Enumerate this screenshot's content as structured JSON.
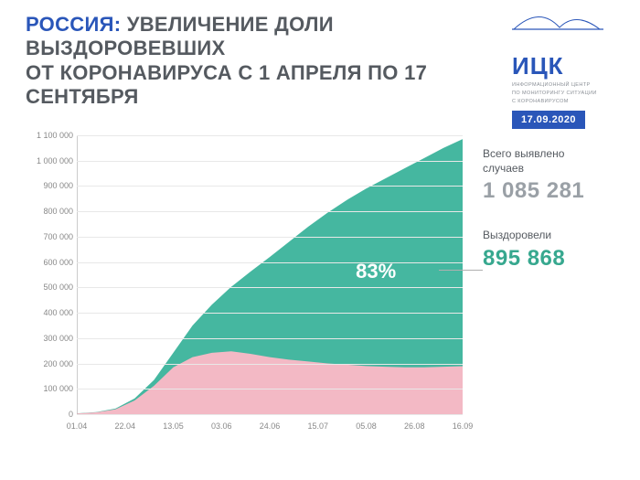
{
  "header": {
    "country": "РОССИЯ:",
    "title_rest_1": "УВЕЛИЧЕНИЕ ДОЛИ ВЫЗДОРОВЕВШИХ",
    "title_rest_2": "ОТ КОРОНАВИРУСА С 1 АПРЕЛЯ ПО 17 СЕНТЯБРЯ",
    "country_color": "#2a56b9",
    "title_color": "#555a60"
  },
  "brand": {
    "letters": "ИЦК",
    "sub_line1": "ИНФОРМАЦИОННЫЙ ЦЕНТР",
    "sub_line2": "ПО МОНИТОРИНГУ СИТУАЦИИ",
    "sub_line3": "С КОРОНАВИРУСОМ",
    "color": "#2a56b9",
    "sub_color": "#8a8f96",
    "date": "17.09.2020",
    "date_bg": "#2a56b9"
  },
  "stats": {
    "total_label_1": "Всего выявлено",
    "total_label_2": "случаев",
    "total_value": "1 085 281",
    "total_color": "#9aa0a6",
    "recovered_label": "Выздоровели",
    "recovered_value": "895 868",
    "recovered_color": "#37a88f",
    "label_color": "#555a60"
  },
  "chart": {
    "type": "area",
    "ylim": [
      0,
      1100000
    ],
    "ytick_labels": [
      "0",
      "100 000",
      "200 000",
      "300 000",
      "400 000",
      "500 000",
      "600 000",
      "700 000",
      "800 000",
      "900 000",
      "1 000 000",
      "1 100 000"
    ],
    "ytick_values": [
      0,
      100000,
      200000,
      300000,
      400000,
      500000,
      600000,
      700000,
      800000,
      900000,
      1000000,
      1100000
    ],
    "x_labels": [
      "01.04",
      "22.04",
      "13.05",
      "03.06",
      "24.06",
      "15.07",
      "05.08",
      "26.08",
      "16.09"
    ],
    "x_positions": [
      0,
      0.125,
      0.25,
      0.375,
      0.5,
      0.625,
      0.75,
      0.875,
      1.0
    ],
    "series_total": {
      "color": "#45b7a0",
      "points": [
        [
          0.0,
          3000
        ],
        [
          0.05,
          8000
        ],
        [
          0.1,
          22000
        ],
        [
          0.15,
          62000
        ],
        [
          0.2,
          135000
        ],
        [
          0.25,
          242000
        ],
        [
          0.3,
          350000
        ],
        [
          0.35,
          432000
        ],
        [
          0.4,
          502000
        ],
        [
          0.45,
          562000
        ],
        [
          0.5,
          620000
        ],
        [
          0.55,
          680000
        ],
        [
          0.6,
          740000
        ],
        [
          0.65,
          795000
        ],
        [
          0.7,
          845000
        ],
        [
          0.75,
          890000
        ],
        [
          0.8,
          930000
        ],
        [
          0.85,
          970000
        ],
        [
          0.9,
          1010000
        ],
        [
          0.95,
          1050000
        ],
        [
          1.0,
          1085281
        ]
      ]
    },
    "series_active": {
      "color": "#f3b9c5",
      "points": [
        [
          0.0,
          2500
        ],
        [
          0.05,
          7000
        ],
        [
          0.1,
          19000
        ],
        [
          0.15,
          54000
        ],
        [
          0.2,
          112000
        ],
        [
          0.25,
          185000
        ],
        [
          0.3,
          225000
        ],
        [
          0.35,
          242000
        ],
        [
          0.4,
          248000
        ],
        [
          0.45,
          238000
        ],
        [
          0.5,
          225000
        ],
        [
          0.55,
          215000
        ],
        [
          0.6,
          208000
        ],
        [
          0.65,
          200000
        ],
        [
          0.7,
          195000
        ],
        [
          0.75,
          190000
        ],
        [
          0.8,
          187000
        ],
        [
          0.85,
          185000
        ],
        [
          0.9,
          185000
        ],
        [
          0.95,
          187000
        ],
        [
          1.0,
          189413
        ]
      ]
    },
    "pct_label": "83%",
    "pct_color": "#ffffff",
    "pct_fontsize": 22,
    "pct_x": 0.78,
    "pct_y": 560000,
    "grid_color": "#e8e8e8",
    "axis_color": "#cccccc",
    "tick_font_color": "#888888",
    "tick_font_size": 9
  }
}
